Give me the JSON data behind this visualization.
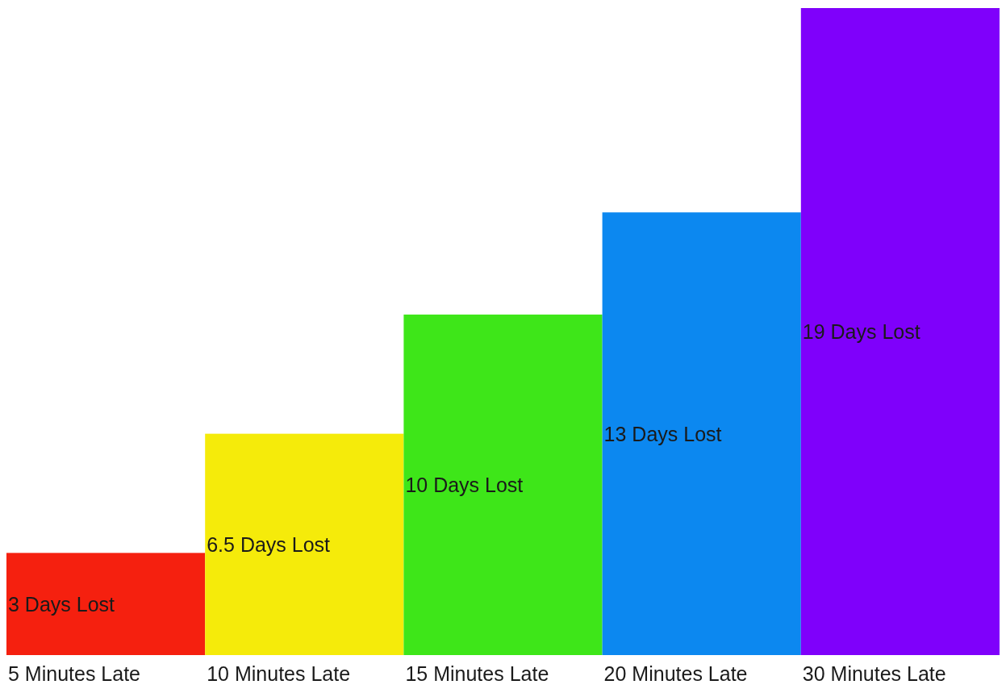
{
  "chart_data": {
    "type": "bar",
    "categories": [
      "5 Minutes Late",
      "10 Minutes Late",
      "15 Minutes Late",
      "20 Minutes Late",
      "30 Minutes Late"
    ],
    "values": [
      3,
      6.5,
      10,
      13,
      19
    ],
    "colors": [
      "#f5200f",
      "#f5eb0a",
      "#3ee619",
      "#0c88f0",
      "#7f00fb"
    ],
    "value_labels": [
      "3 Days Lost",
      "6.5 Days Lost",
      "10 Days Lost",
      "13 Days Lost",
      "19 Days Lost"
    ]
  }
}
